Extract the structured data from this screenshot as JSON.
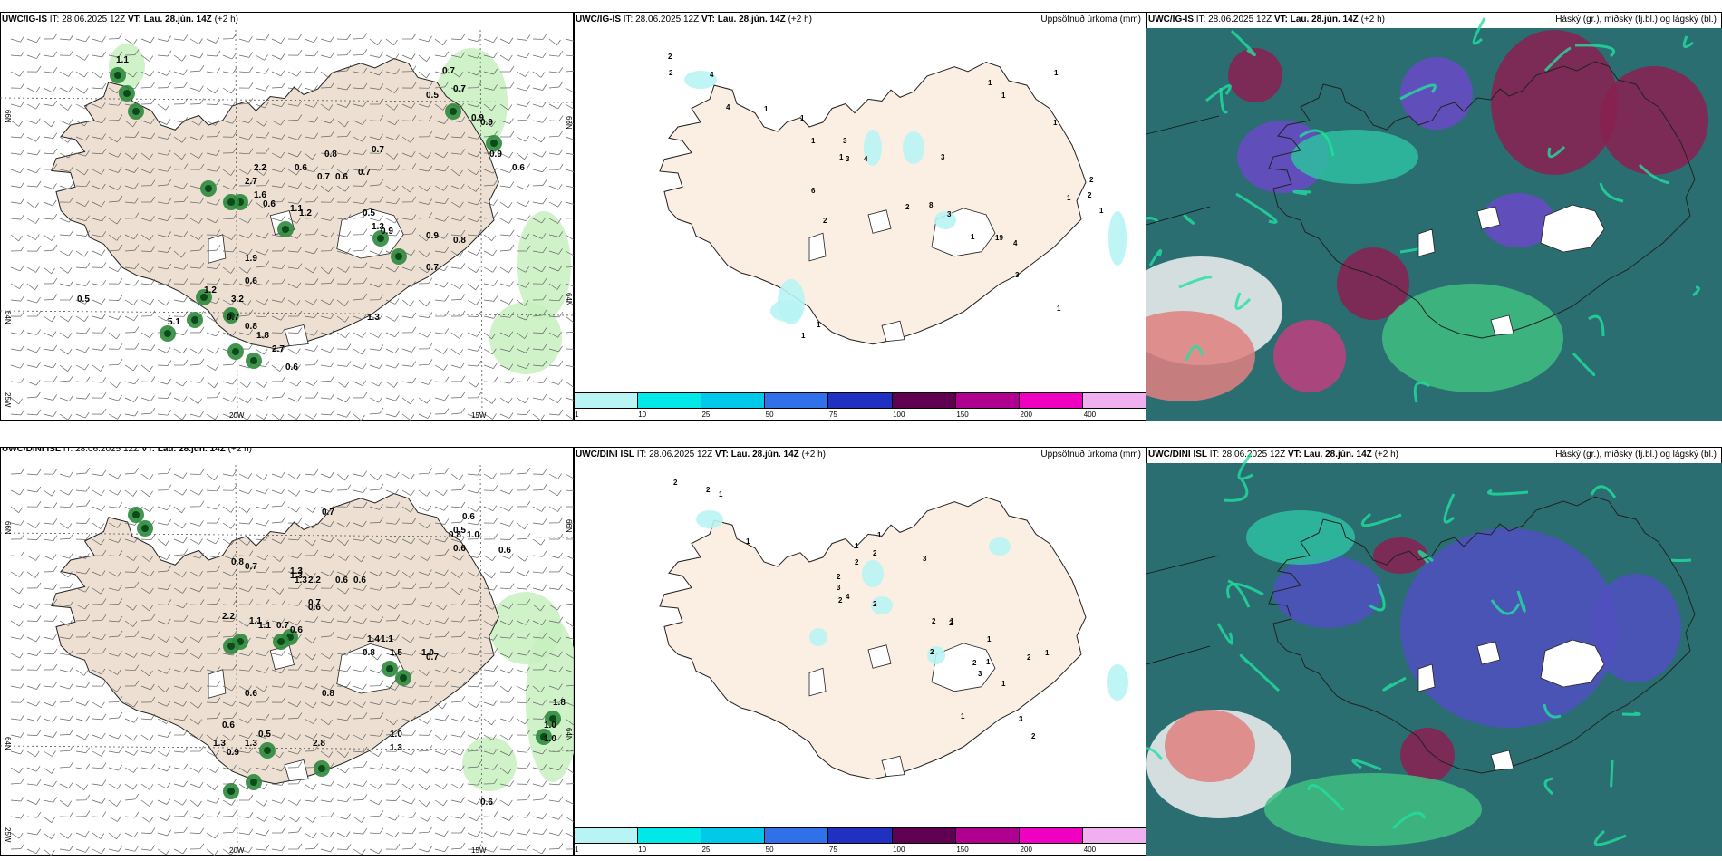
{
  "rows": [
    {
      "model": "UWC/IG-IS",
      "it_prefix": "IT:",
      "it": "28.06.2025 12Z",
      "vt_prefix": "VT:",
      "vt": "Lau. 28.jún. 14Z",
      "offset": "(+2 h)",
      "wind_values": [
        "1.1",
        "0.7",
        "0.7",
        "0.5",
        "0.9",
        "0.9",
        "0.9",
        "0.6",
        "0.7",
        "0.8",
        "0.6",
        "0.7",
        "0.6",
        "0.7",
        "2.2",
        "2.7",
        "1.6",
        "0.6",
        "1.1",
        "1.2",
        "0.5",
        "1.3",
        "0.9",
        "0.9",
        "0.8",
        "0.7",
        "1.9",
        "0.6",
        "1.2",
        "3.2",
        "0.8",
        "0.7",
        "0.5",
        "1.3",
        "1.8",
        "2.7",
        "0.6",
        "5.1"
      ],
      "precip_values": [
        "2",
        "2",
        "4",
        "4",
        "1",
        "1",
        "1",
        "3",
        "1",
        "3",
        "3",
        "4",
        "6",
        "2",
        "2",
        "1",
        "1",
        "1",
        "2",
        "2",
        "1",
        "1",
        "3",
        "8",
        "1",
        "19",
        "4",
        "3",
        "1",
        "1",
        "1",
        "1"
      ]
    },
    {
      "model": "UWC/DINI ISL",
      "it_prefix": "IT:",
      "it": "28.06.2025 12Z",
      "vt_prefix": "VT:",
      "vt": "Lau. 28.jún. 14Z",
      "offset": "(+2 h)",
      "wind_values": [
        "0.7",
        "0.6",
        "0.5",
        "0.8",
        "1.0",
        "0.6",
        "0.6",
        "0.8",
        "0.7",
        "1.3",
        "1.3",
        "1.3",
        "0.6",
        "2.2",
        "0.6",
        "0.7",
        "0.6",
        "2.2",
        "1.1",
        "1.1",
        "0.7",
        "0.6",
        "1.4",
        "1.1",
        "0.8",
        "1.5",
        "1.0",
        "0.7",
        "0.6",
        "0.8",
        "0.6",
        "0.5",
        "1.3",
        "0.9",
        "1.3",
        "2.8",
        "1.0",
        "1.3",
        "0.6",
        "1.8",
        "1.0",
        "1.0"
      ],
      "precip_values": [
        "2",
        "2",
        "1",
        "1",
        "1",
        "1",
        "2",
        "2",
        "3",
        "2",
        "3",
        "4",
        "2",
        "2",
        "2",
        "1",
        "2",
        "2",
        "2",
        "1",
        "1",
        "2",
        "1",
        "3",
        "2",
        "1",
        "3",
        "1"
      ]
    }
  ],
  "precip_title": "Uppsöfnuð úrkoma (mm)",
  "cloud_title": "Háský (gr.), miðský (fj.bl.) og lágský (bl.)",
  "axes": {
    "lat66": "66N",
    "lat64": "64N",
    "lon20": "20W",
    "lon15": "15W",
    "lon25": "25W"
  },
  "colorbar": {
    "ticks": [
      "1",
      "10",
      "25",
      "50",
      "75",
      "100",
      "150",
      "200",
      "400"
    ],
    "colors": [
      "#b8f4f4",
      "#00e8e8",
      "#00c8e8",
      "#3070e8",
      "#2030c0",
      "#600050",
      "#b00090",
      "#f000c0",
      "#f0b0f0"
    ]
  }
}
